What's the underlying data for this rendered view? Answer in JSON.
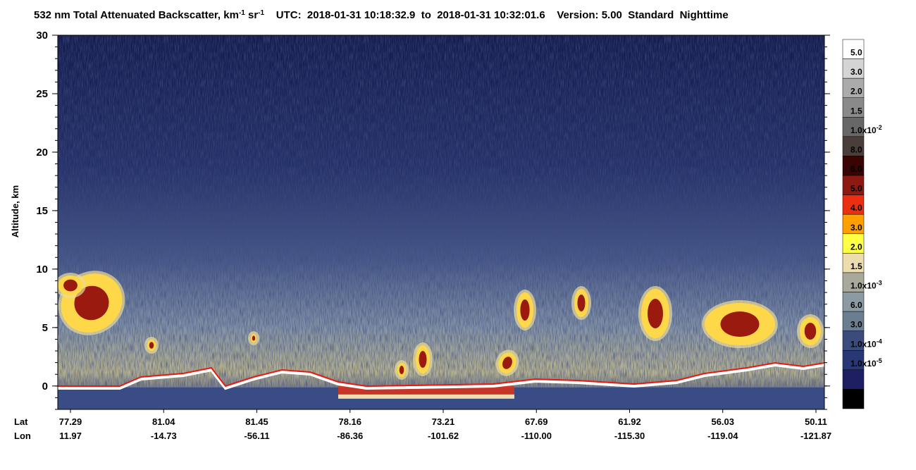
{
  "chart_data": {
    "type": "curtain",
    "title_parts": [
      {
        "text": "532 nm Total Attenuated Backscatter, km"
      },
      {
        "text": "-1",
        "sup": true
      },
      {
        "text": " sr"
      },
      {
        "text": "-1",
        "sup": true
      },
      {
        "text": "    UTC:  2018-01-31 10:18:32.9  to  2018-01-31 10:32:01.6    Version: 5.00  Standard  Nighttime"
      }
    ],
    "y_label": "Altitude, km",
    "ylim": [
      -2,
      30
    ],
    "yticks": [
      0,
      5,
      10,
      15,
      20,
      25,
      30
    ],
    "lat_label": "Lat",
    "lon_label": "Lon",
    "lat": [
      77.29,
      81.04,
      81.45,
      78.16,
      73.21,
      67.69,
      61.92,
      56.03,
      50.11
    ],
    "lon": [
      11.97,
      -14.73,
      -56.11,
      -86.36,
      -101.62,
      {
        "value": -110,
        "label": "-110.00"
      },
      {
        "value": -115.3,
        "label": "-115.30"
      },
      -119.04,
      -121.87
    ],
    "colorbar": {
      "colors": [
        "#ffffff",
        "#d4d4d4",
        "#ababab",
        "#8a8a8a",
        "#676767",
        "#4a3e3a",
        "#380404",
        "#8c1a12",
        "#ea3010",
        "#ff9f00",
        "#ffff44",
        "#ecdcae",
        "#a9a99b",
        "#8b9aa3",
        "#6a7d91",
        "#3b4b7c",
        "#283877",
        "#1d1f62",
        "#000000"
      ],
      "labels": [
        {
          "mantissa": "5.0"
        },
        {
          "mantissa": "3.0"
        },
        {
          "mantissa": "2.0"
        },
        {
          "mantissa": "1.5"
        },
        {
          "mantissa": "1.0x10",
          "exponent": "-2"
        },
        {
          "mantissa": "8.0"
        },
        {
          "mantissa": "6.0"
        },
        {
          "mantissa": "5.0"
        },
        {
          "mantissa": "4.0"
        },
        {
          "mantissa": "3.0"
        },
        {
          "mantissa": "2.0"
        },
        {
          "mantissa": "1.5"
        },
        {
          "mantissa": "1.0x10",
          "exponent": "-3"
        },
        {
          "mantissa": "6.0"
        },
        {
          "mantissa": "3.0"
        },
        {
          "mantissa": "1.0x10",
          "exponent": "-4"
        },
        {
          "mantissa": "1.0x10",
          "exponent": "-5"
        }
      ]
    }
  }
}
